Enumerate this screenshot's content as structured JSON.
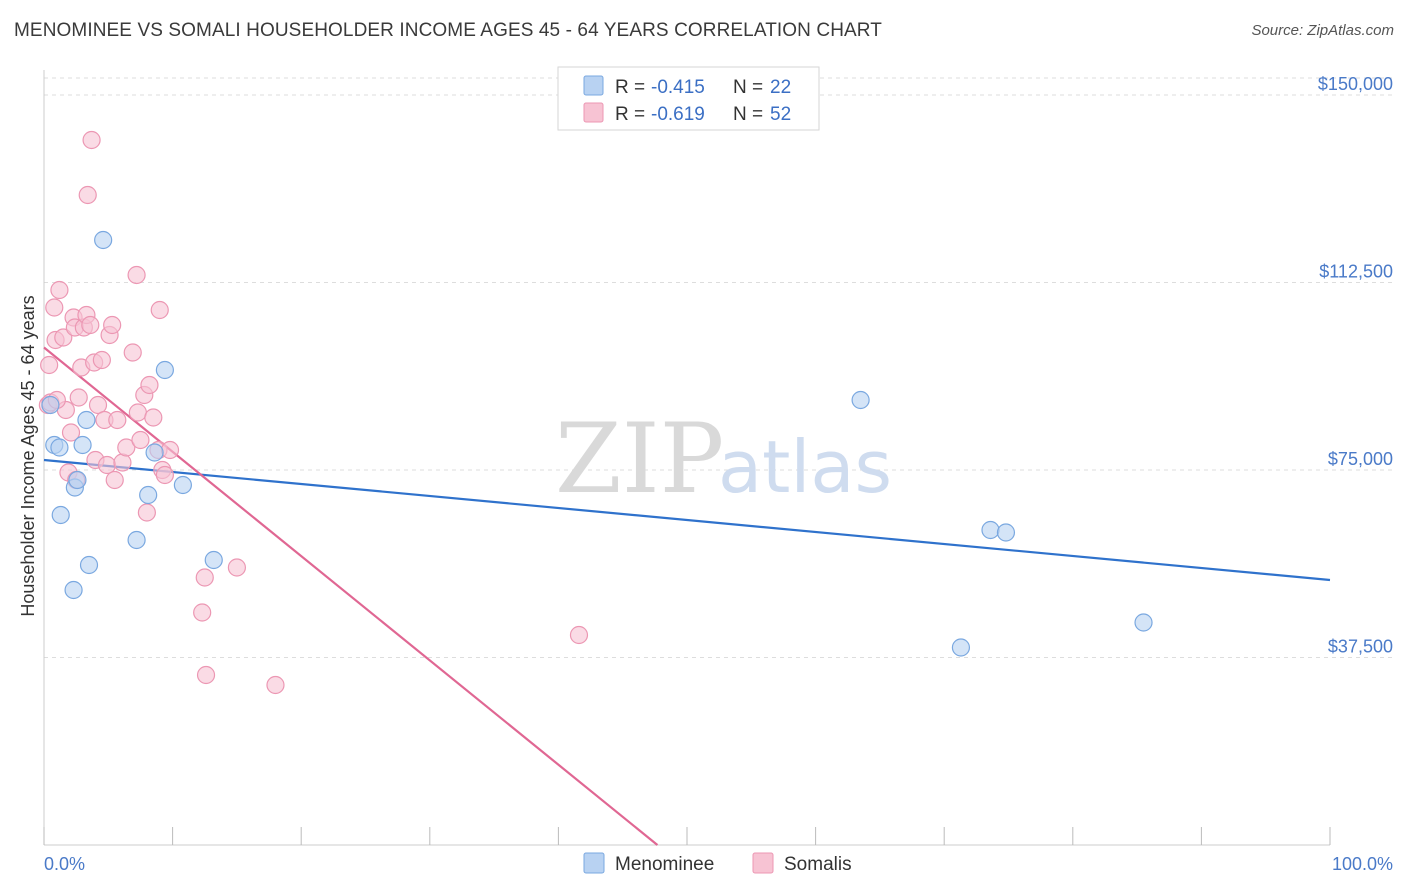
{
  "title": "MENOMINEE VS SOMALI HOUSEHOLDER INCOME AGES 45 - 64 YEARS CORRELATION CHART",
  "source": "Source: ZipAtlas.com",
  "watermark": {
    "zip": "ZIP",
    "atlas": "atlas"
  },
  "colors": {
    "menominee_fill": "#b8d2f2",
    "menominee_stroke": "#7aa8e0",
    "menominee_line": "#2f72cc",
    "somali_fill": "#f7c3d3",
    "somali_stroke": "#ec97b3",
    "somali_line": "#e06793",
    "tick_text": "#4a7ac8",
    "grid": "#dddddd"
  },
  "legend": {
    "rows": [
      {
        "r_label": "R =",
        "r_value": "-0.415",
        "n_label": "N =",
        "n_value": "22"
      },
      {
        "r_label": "R =",
        "r_value": "-0.619",
        "n_label": "N =",
        "n_value": "52"
      }
    ]
  },
  "bottom_legend": [
    "Menominee",
    "Somalis"
  ],
  "chart_data": {
    "type": "scatter",
    "title": "MENOMINEE VS SOMALI HOUSEHOLDER INCOME AGES 45 - 64 YEARS CORRELATION CHART",
    "xlabel": "",
    "ylabel": "Householder Income Ages 45 - 64 years",
    "xlim": [
      0,
      100
    ],
    "ylim": [
      0,
      155000
    ],
    "x_tick_labels": [
      "0.0%",
      "100.0%"
    ],
    "y_ticks": [
      37500,
      75000,
      112500,
      150000
    ],
    "y_tick_labels": [
      "$37,500",
      "$75,000",
      "$112,500",
      "$150,000"
    ],
    "series": [
      {
        "name": "Menominee",
        "R": -0.415,
        "N": 22,
        "points": [
          [
            0.5,
            88000
          ],
          [
            0.8,
            80000
          ],
          [
            1.2,
            79500
          ],
          [
            1.3,
            66000
          ],
          [
            2.3,
            51000
          ],
          [
            2.4,
            71500
          ],
          [
            2.6,
            73000
          ],
          [
            3.0,
            80000
          ],
          [
            3.3,
            85000
          ],
          [
            3.5,
            56000
          ],
          [
            4.6,
            121000
          ],
          [
            7.2,
            61000
          ],
          [
            8.1,
            70000
          ],
          [
            8.6,
            78500
          ],
          [
            9.4,
            95000
          ],
          [
            10.8,
            72000
          ],
          [
            13.2,
            57000
          ],
          [
            63.5,
            89000
          ],
          [
            71.3,
            39500
          ],
          [
            73.6,
            63000
          ],
          [
            74.8,
            62500
          ],
          [
            85.5,
            44500
          ]
        ],
        "trend": {
          "x": [
            0,
            100
          ],
          "y": [
            77000,
            53000
          ]
        }
      },
      {
        "name": "Somalis",
        "R": -0.619,
        "N": 52,
        "points": [
          [
            0.3,
            88000
          ],
          [
            0.4,
            96000
          ],
          [
            0.5,
            88500
          ],
          [
            0.8,
            107500
          ],
          [
            0.9,
            101000
          ],
          [
            1.2,
            111000
          ],
          [
            1.5,
            101500
          ],
          [
            1.7,
            87000
          ],
          [
            1.9,
            74500
          ],
          [
            2.1,
            82500
          ],
          [
            2.3,
            105500
          ],
          [
            2.4,
            103500
          ],
          [
            2.5,
            73000
          ],
          [
            2.7,
            89500
          ],
          [
            2.9,
            95500
          ],
          [
            3.1,
            103500
          ],
          [
            3.3,
            106000
          ],
          [
            3.6,
            104000
          ],
          [
            3.7,
            141000
          ],
          [
            3.9,
            96500
          ],
          [
            4.0,
            77000
          ],
          [
            4.2,
            88000
          ],
          [
            4.5,
            97000
          ],
          [
            4.7,
            85000
          ],
          [
            4.9,
            76000
          ],
          [
            5.1,
            102000
          ],
          [
            5.3,
            104000
          ],
          [
            5.5,
            73000
          ],
          [
            5.7,
            85000
          ],
          [
            6.1,
            76500
          ],
          [
            6.4,
            79500
          ],
          [
            6.9,
            98500
          ],
          [
            7.2,
            114000
          ],
          [
            7.3,
            86500
          ],
          [
            7.5,
            81000
          ],
          [
            7.8,
            90000
          ],
          [
            8.0,
            66500
          ],
          [
            8.2,
            92000
          ],
          [
            8.5,
            85500
          ],
          [
            8.9,
            79000
          ],
          [
            9.0,
            107000
          ],
          [
            9.2,
            75000
          ],
          [
            9.4,
            74000
          ],
          [
            9.8,
            79000
          ],
          [
            3.4,
            130000
          ],
          [
            12.3,
            46500
          ],
          [
            12.5,
            53500
          ],
          [
            12.6,
            34000
          ],
          [
            15.0,
            55500
          ],
          [
            18.0,
            32000
          ],
          [
            41.6,
            42000
          ],
          [
            1.0,
            89000
          ]
        ],
        "trend": {
          "x": [
            0,
            47.7
          ],
          "y": [
            99500,
            0
          ]
        }
      }
    ]
  }
}
